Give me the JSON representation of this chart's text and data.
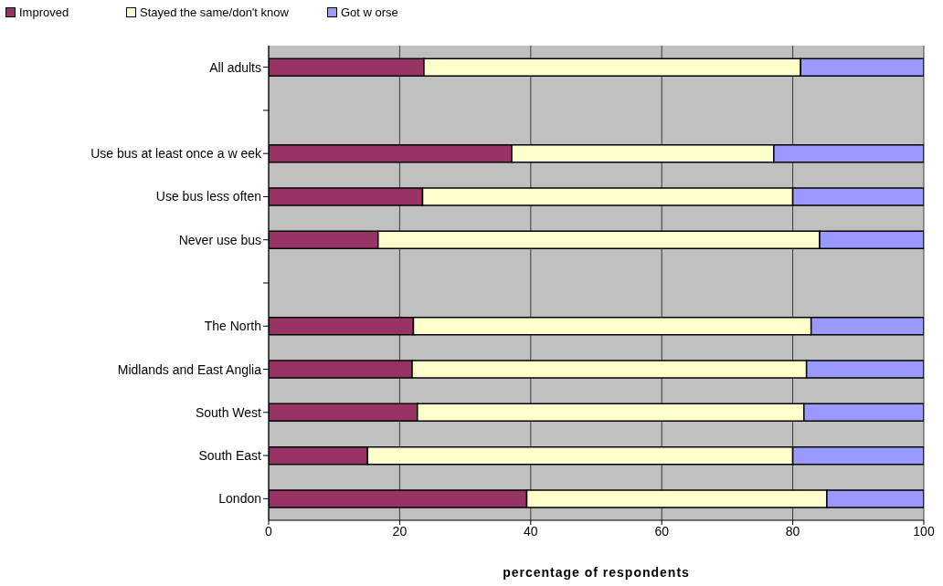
{
  "chart_data": {
    "type": "bar",
    "orientation": "horizontal",
    "stacked": true,
    "xlabel": "percentage of respondents",
    "categories": [
      "All adults",
      null,
      "Use bus at least once a w eek",
      "Use bus less often",
      "Never use bus",
      null,
      "The North",
      "Midlands and East Anglia",
      "South West",
      "South East",
      "London"
    ],
    "series": [
      {
        "name": "Improved",
        "color": "#993366",
        "values": [
          23.7,
          null,
          37.1,
          23.5,
          16.7,
          null,
          22.1,
          21.9,
          22.7,
          15.1,
          39.4
        ]
      },
      {
        "name": "Stayed the same/don't know",
        "color": "#ffffcc",
        "values": [
          57.5,
          null,
          40.0,
          56.5,
          67.4,
          null,
          60.7,
          60.2,
          59.0,
          64.9,
          45.8
        ]
      },
      {
        "name": "Got w orse",
        "color": "#9999ff",
        "values": [
          18.8,
          null,
          22.9,
          20.0,
          15.9,
          null,
          17.2,
          17.9,
          18.3,
          20.0,
          14.8
        ]
      }
    ],
    "xlim": [
      0,
      100
    ],
    "xticks": [
      0,
      20,
      40,
      60,
      80,
      100
    ],
    "grid": "x",
    "legend": "top"
  }
}
